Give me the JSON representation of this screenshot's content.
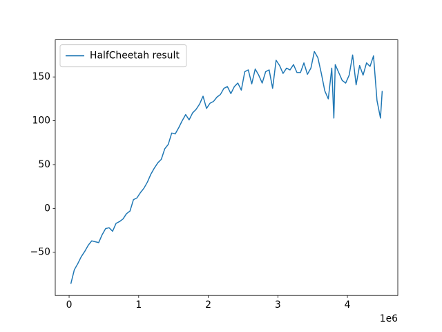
{
  "chart_data": {
    "type": "line",
    "x": [
      25000,
      75000,
      125000,
      175000,
      225000,
      275000,
      325000,
      375000,
      425000,
      475000,
      525000,
      575000,
      625000,
      675000,
      725000,
      775000,
      825000,
      875000,
      925000,
      975000,
      1025000,
      1075000,
      1125000,
      1175000,
      1225000,
      1275000,
      1325000,
      1375000,
      1425000,
      1475000,
      1525000,
      1575000,
      1625000,
      1675000,
      1725000,
      1775000,
      1825000,
      1875000,
      1925000,
      1975000,
      2025000,
      2075000,
      2125000,
      2175000,
      2225000,
      2275000,
      2325000,
      2375000,
      2425000,
      2475000,
      2525000,
      2575000,
      2625000,
      2675000,
      2725000,
      2775000,
      2825000,
      2875000,
      2925000,
      2975000,
      3025000,
      3075000,
      3125000,
      3175000,
      3225000,
      3275000,
      3325000,
      3375000,
      3425000,
      3475000,
      3525000,
      3575000,
      3625000,
      3675000,
      3725000,
      3775000,
      3805000,
      3825000,
      3875000,
      3925000,
      3975000,
      4025000,
      4075000,
      4125000,
      4175000,
      4225000,
      4275000,
      4325000,
      4375000,
      4425000,
      4475000,
      4500000
    ],
    "series": [
      {
        "name": "HalfCheetah result",
        "color": "#1f77b4",
        "values": [
          -86,
          -70,
          -63,
          -55,
          -49,
          -42,
          -37,
          -38,
          -39,
          -30,
          -23,
          -22,
          -26,
          -17,
          -15,
          -12,
          -6,
          -3,
          10,
          12,
          18,
          23,
          30,
          39,
          46,
          52,
          56,
          68,
          73,
          86,
          85,
          92,
          100,
          107,
          101,
          109,
          113,
          119,
          128,
          114,
          120,
          122,
          127,
          130,
          137,
          139,
          131,
          139,
          143,
          135,
          156,
          158,
          142,
          159,
          152,
          143,
          156,
          158,
          137,
          169,
          163,
          154,
          160,
          158,
          164,
          155,
          155,
          166,
          153,
          160,
          179,
          172,
          154,
          134,
          125,
          160,
          103,
          164,
          155,
          146,
          143,
          152,
          175,
          141,
          163,
          152,
          166,
          162,
          174,
          123,
          103,
          134
        ]
      }
    ],
    "xlim": [
      -199000,
      4724000
    ],
    "ylim": [
      -99.3,
      192.3
    ],
    "xticks": [
      0,
      {
        "value": 1000000,
        "label": "1"
      },
      {
        "value": 2000000,
        "label": "2"
      },
      {
        "value": 3000000,
        "label": "3"
      },
      {
        "value": 4000000,
        "label": "4"
      }
    ],
    "yticks": [
      {
        "value": -50,
        "label": "−50"
      },
      0,
      50,
      100,
      150
    ],
    "x_offset": "1e6",
    "legend": "upper left",
    "grid": false
  }
}
